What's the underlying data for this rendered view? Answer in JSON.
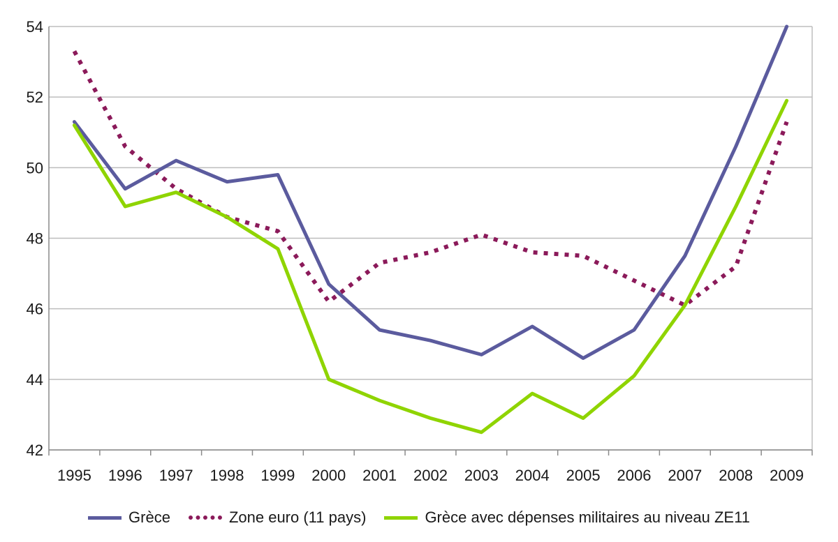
{
  "chart_data": {
    "type": "line",
    "title": "",
    "xlabel": "",
    "ylabel": "",
    "x": [
      "1995",
      "1996",
      "1997",
      "1998",
      "1999",
      "2000",
      "2001",
      "2002",
      "2003",
      "2004",
      "2005",
      "2006",
      "2007",
      "2008",
      "2009"
    ],
    "y_ticks": [
      "42",
      "44",
      "46",
      "48",
      "50",
      "52",
      "54"
    ],
    "ylim": [
      42,
      54
    ],
    "grid": true,
    "legend_position": "bottom",
    "series": [
      {
        "name": "Grèce",
        "color": "#5b5b9e",
        "style": "solid",
        "values": [
          51.3,
          49.4,
          50.2,
          49.6,
          49.8,
          46.7,
          45.4,
          45.1,
          44.7,
          45.5,
          44.6,
          45.4,
          47.5,
          50.6,
          54.0
        ]
      },
      {
        "name": "Zone euro (11 pays)",
        "color": "#8b1a5a",
        "style": "dotted",
        "values": [
          53.3,
          50.6,
          49.4,
          48.6,
          48.2,
          46.2,
          47.3,
          47.6,
          48.1,
          47.6,
          47.5,
          46.8,
          46.1,
          47.2,
          51.3
        ]
      },
      {
        "name": "Grèce avec dépenses militaires au niveau ZE11",
        "color": "#8fd400",
        "style": "solid",
        "values": [
          51.2,
          48.9,
          49.3,
          48.6,
          47.7,
          44.0,
          43.4,
          42.9,
          42.5,
          43.6,
          42.9,
          44.1,
          46.1,
          48.9,
          51.9
        ]
      }
    ]
  }
}
